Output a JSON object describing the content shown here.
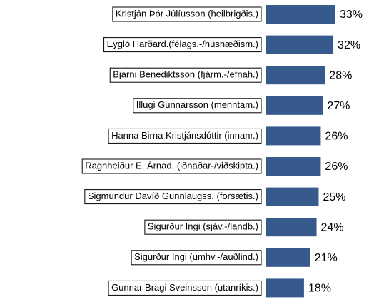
{
  "chart_data": {
    "type": "hbar",
    "categories": [
      "Kristján Þór Júlíusson (heilbrigðis.)",
      "Eygló Harðard.(félags.-/húsnæðism.)",
      "Bjarni Benediktsson (fjárm.-/efnah.)",
      "Illugi Gunnarsson (menntam.)",
      "Hanna Birna Kristjánsdóttir (innanr.)",
      "Ragnheiður E. Árnad. (iðnaðar-/viðskipta.)",
      "Sigmundur Davíð Gunnlaugss. (forsætis.)",
      "Sigurður Ingi (sjáv.-/landb.)",
      "Sigurður Ingi (umhv.-/auðlind.)",
      "Gunnar Bragi Sveinsson (utanríkis.)"
    ],
    "values": [
      33,
      32,
      28,
      27,
      26,
      26,
      25,
      24,
      21,
      18
    ],
    "value_labels": [
      "33%",
      "32%",
      "28%",
      "27%",
      "26%",
      "26%",
      "25%",
      "24%",
      "21%",
      "18%"
    ],
    "color": "#375a8d"
  }
}
